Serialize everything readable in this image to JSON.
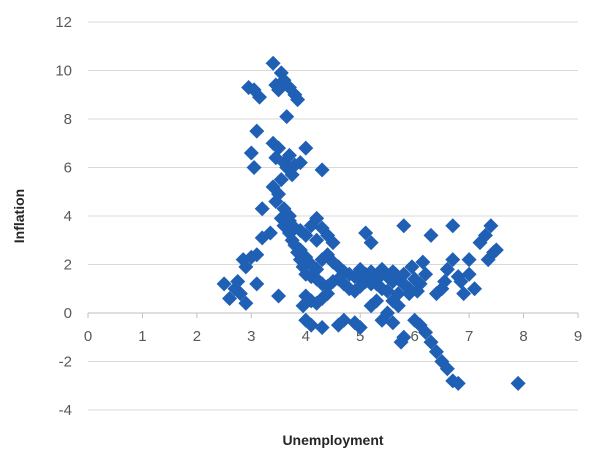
{
  "chart_data": {
    "type": "scatter",
    "title": "",
    "xlabel": "Unemployment",
    "ylabel": "Inflation",
    "xlim": [
      0,
      9
    ],
    "ylim": [
      -4,
      12
    ],
    "xticks": [
      "0",
      "1",
      "2",
      "3",
      "4",
      "5",
      "6",
      "7",
      "8",
      "9"
    ],
    "yticks": [
      "12",
      "10",
      "8",
      "6",
      "4",
      "2",
      "0",
      "-2",
      "-4"
    ],
    "grid": "horizontal",
    "legend": "none",
    "marker": "diamond",
    "color": "#1f5fb4",
    "points": [
      [
        2.5,
        1.2
      ],
      [
        2.6,
        0.6
      ],
      [
        2.7,
        1.0
      ],
      [
        2.75,
        1.3
      ],
      [
        2.8,
        0.8
      ],
      [
        2.9,
        0.4
      ],
      [
        2.85,
        2.2
      ],
      [
        2.9,
        1.9
      ],
      [
        3.0,
        2.3
      ],
      [
        3.1,
        2.4
      ],
      [
        2.95,
        9.3
      ],
      [
        3.05,
        9.2
      ],
      [
        3.15,
        8.9
      ],
      [
        3.0,
        6.6
      ],
      [
        3.05,
        6.0
      ],
      [
        3.1,
        7.5
      ],
      [
        3.2,
        4.3
      ],
      [
        3.2,
        3.1
      ],
      [
        3.35,
        3.3
      ],
      [
        3.1,
        1.2
      ],
      [
        3.4,
        10.3
      ],
      [
        3.45,
        9.4
      ],
      [
        3.5,
        9.2
      ],
      [
        3.55,
        9.9
      ],
      [
        3.6,
        9.6
      ],
      [
        3.65,
        8.1
      ],
      [
        3.7,
        9.3
      ],
      [
        3.8,
        9.0
      ],
      [
        3.85,
        8.8
      ],
      [
        3.4,
        7.0
      ],
      [
        3.45,
        6.4
      ],
      [
        3.5,
        6.8
      ],
      [
        3.55,
        5.5
      ],
      [
        3.6,
        6.2
      ],
      [
        3.65,
        6.0
      ],
      [
        3.7,
        6.5
      ],
      [
        3.75,
        5.7
      ],
      [
        3.8,
        6.1
      ],
      [
        3.9,
        6.2
      ],
      [
        4.0,
        6.8
      ],
      [
        4.3,
        5.9
      ],
      [
        3.4,
        5.2
      ],
      [
        3.5,
        4.9
      ],
      [
        3.6,
        4.3
      ],
      [
        3.7,
        4.0
      ],
      [
        3.45,
        4.6
      ],
      [
        3.55,
        3.9
      ],
      [
        3.6,
        3.6
      ],
      [
        3.7,
        3.3
      ],
      [
        3.75,
        3.0
      ],
      [
        3.8,
        2.8
      ],
      [
        3.85,
        2.5
      ],
      [
        3.9,
        2.2
      ],
      [
        3.95,
        1.9
      ],
      [
        4.0,
        1.6
      ],
      [
        4.1,
        1.5
      ],
      [
        4.2,
        1.4
      ],
      [
        4.3,
        1.2
      ],
      [
        4.4,
        1.1
      ],
      [
        4.5,
        1.3
      ],
      [
        3.7,
        3.8
      ],
      [
        3.8,
        3.5
      ],
      [
        3.9,
        3.4
      ],
      [
        4.0,
        3.2
      ],
      [
        4.1,
        3.6
      ],
      [
        4.2,
        3.9
      ],
      [
        4.3,
        3.5
      ],
      [
        4.4,
        3.2
      ],
      [
        4.5,
        2.9
      ],
      [
        4.2,
        3.0
      ],
      [
        3.9,
        2.6
      ],
      [
        4.0,
        2.3
      ],
      [
        4.1,
        2.0
      ],
      [
        4.2,
        1.8
      ],
      [
        4.3,
        2.2
      ],
      [
        4.4,
        2.4
      ],
      [
        4.5,
        2.1
      ],
      [
        4.6,
        1.9
      ],
      [
        4.7,
        1.7
      ],
      [
        4.8,
        1.6
      ],
      [
        4.9,
        1.5
      ],
      [
        5.0,
        1.4
      ],
      [
        5.1,
        1.3
      ],
      [
        5.2,
        1.2
      ],
      [
        5.3,
        1.4
      ],
      [
        5.4,
        1.6
      ],
      [
        5.5,
        1.5
      ],
      [
        5.6,
        1.3
      ],
      [
        5.7,
        1.4
      ],
      [
        5.8,
        1.2
      ],
      [
        4.6,
        1.4
      ],
      [
        4.7,
        1.2
      ],
      [
        4.8,
        1.0
      ],
      [
        4.9,
        0.9
      ],
      [
        5.0,
        1.1
      ],
      [
        5.1,
        1.6
      ],
      [
        5.2,
        1.5
      ],
      [
        5.3,
        1.2
      ],
      [
        5.4,
        1.0
      ],
      [
        5.5,
        0.9
      ],
      [
        5.0,
        1.8
      ],
      [
        5.2,
        1.7
      ],
      [
        5.4,
        1.8
      ],
      [
        5.6,
        1.7
      ],
      [
        5.8,
        1.6
      ],
      [
        6.0,
        1.4
      ],
      [
        6.1,
        1.2
      ],
      [
        5.9,
        1.0
      ],
      [
        5.7,
        0.8
      ],
      [
        5.6,
        0.5
      ],
      [
        4.0,
        0.7
      ],
      [
        4.1,
        0.5
      ],
      [
        4.2,
        0.4
      ],
      [
        3.95,
        0.3
      ],
      [
        3.5,
        0.7
      ],
      [
        4.3,
        0.6
      ],
      [
        4.4,
        0.8
      ],
      [
        4.0,
        -0.3
      ],
      [
        4.1,
        -0.5
      ],
      [
        4.3,
        -0.6
      ],
      [
        4.6,
        -0.5
      ],
      [
        4.7,
        -0.3
      ],
      [
        4.9,
        -0.4
      ],
      [
        5.0,
        -0.6
      ],
      [
        5.2,
        0.3
      ],
      [
        5.3,
        0.5
      ],
      [
        5.4,
        -0.3
      ],
      [
        5.5,
        0.0
      ],
      [
        5.6,
        -0.4
      ],
      [
        5.7,
        0.3
      ],
      [
        5.8,
        -1.0
      ],
      [
        5.75,
        -1.2
      ],
      [
        5.9,
        0.8
      ],
      [
        5.1,
        3.3
      ],
      [
        5.2,
        2.9
      ],
      [
        5.8,
        3.6
      ],
      [
        6.0,
        -0.3
      ],
      [
        6.1,
        -0.5
      ],
      [
        6.2,
        -0.8
      ],
      [
        6.3,
        -1.2
      ],
      [
        6.4,
        -1.6
      ],
      [
        6.5,
        -2.0
      ],
      [
        6.6,
        -2.3
      ],
      [
        6.7,
        -2.8
      ],
      [
        6.8,
        -2.9
      ],
      [
        6.2,
        1.6
      ],
      [
        6.3,
        3.2
      ],
      [
        6.4,
        0.8
      ],
      [
        6.5,
        1.0
      ],
      [
        6.6,
        1.8
      ],
      [
        6.7,
        2.2
      ],
      [
        6.8,
        1.5
      ],
      [
        6.9,
        0.8
      ],
      [
        7.0,
        1.6
      ],
      [
        7.1,
        1.0
      ],
      [
        6.7,
        3.6
      ],
      [
        7.0,
        2.2
      ],
      [
        7.2,
        2.9
      ],
      [
        7.3,
        3.2
      ],
      [
        7.4,
        3.6
      ],
      [
        7.45,
        2.5
      ],
      [
        7.5,
        2.6
      ],
      [
        7.35,
        2.2
      ],
      [
        7.9,
        -2.9
      ],
      [
        6.15,
        2.1
      ],
      [
        5.95,
        1.9
      ],
      [
        6.05,
        0.9
      ],
      [
        6.55,
        1.3
      ],
      [
        6.85,
        1.3
      ],
      [
        5.65,
        1.6
      ]
    ]
  }
}
